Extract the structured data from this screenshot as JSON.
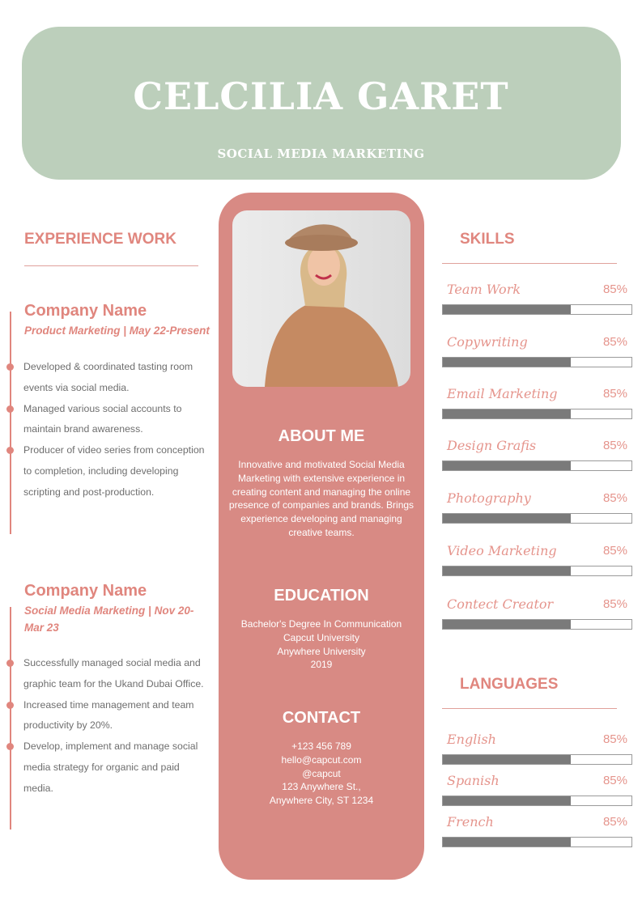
{
  "header": {
    "name": "CELCILIA GARET",
    "role": "SOCIAL MEDIA MARKETING"
  },
  "experience": {
    "title": "EXPERIENCE WORK",
    "jobs": [
      {
        "company": "Company Name",
        "subtitle": "Product Marketing | May 22-Present",
        "bullets": [
          "Developed & coordinated tasting room events via social media.",
          "Managed various social accounts to maintain brand awareness.",
          "Producer of video series from conception to completion, including developing scripting and post-production."
        ]
      },
      {
        "company": "Company Name",
        "subtitle": "Social Media Marketing | Nov 20-Mar 23",
        "bullets": [
          "Successfully managed social media and graphic team for the Ukand Dubai Office.",
          "Increased time management and team productivity by 20%.",
          "Develop, implement and manage social media strategy for organic and paid media."
        ]
      }
    ]
  },
  "about": {
    "title": "ABOUT ME",
    "text": "Innovative and motivated Social Media Marketing with extensive experience in creating content and managing the online presence of companies and brands. Brings experience developing and managing creative teams."
  },
  "education": {
    "title": "EDUCATION",
    "lines": [
      "Bachelor's Degree In Communication",
      "Capcut University",
      "Anywhere University",
      "2019"
    ]
  },
  "contact": {
    "title": "CONTACT",
    "lines": [
      "+123  456 789",
      "hello@capcut.com",
      "@capcut",
      "123 Anywhere St.,",
      "Anywhere City, ST 1234"
    ]
  },
  "skills": {
    "title": "SKILLS",
    "items": [
      {
        "label": "Team Work",
        "pct": "85%",
        "fill": 0.68
      },
      {
        "label": "Copywriting",
        "pct": "85%",
        "fill": 0.68
      },
      {
        "label": "Email Marketing",
        "pct": "85%",
        "fill": 0.68
      },
      {
        "label": "Design Grafis",
        "pct": "85%",
        "fill": 0.68
      },
      {
        "label": "Photography",
        "pct": "85%",
        "fill": 0.68
      },
      {
        "label": "Video Marketing",
        "pct": "85%",
        "fill": 0.68
      },
      {
        "label": "Contect Creator",
        "pct": "85%",
        "fill": 0.68
      }
    ]
  },
  "languages": {
    "title": "LANGUAGES",
    "items": [
      {
        "label": "English",
        "pct": "85%",
        "fill": 0.68
      },
      {
        "label": "Spanish",
        "pct": "85%",
        "fill": 0.68
      },
      {
        "label": "French",
        "pct": "85%",
        "fill": 0.68
      }
    ]
  },
  "colors": {
    "accent": "#e0867e",
    "header": "#bccfbb",
    "panel": "#d88a84",
    "bar": "#7a7a7a"
  }
}
